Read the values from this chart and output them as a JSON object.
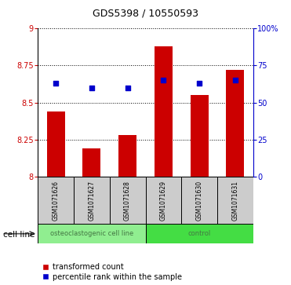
{
  "title": "GDS5398 / 10550593",
  "samples": [
    "GSM1071626",
    "GSM1071627",
    "GSM1071628",
    "GSM1071629",
    "GSM1071630",
    "GSM1071631"
  ],
  "transformed_counts": [
    8.44,
    8.19,
    8.28,
    8.88,
    8.55,
    8.72
  ],
  "percentile_ranks": [
    63,
    60,
    60,
    65,
    63,
    65
  ],
  "ylim_left": [
    8.0,
    9.0
  ],
  "ylim_right": [
    0,
    100
  ],
  "yticks_left": [
    8.0,
    8.25,
    8.5,
    8.75,
    9.0
  ],
  "ytick_labels_left": [
    "8",
    "8.25",
    "8.5",
    "8.75",
    "9"
  ],
  "yticks_right": [
    0,
    25,
    50,
    75,
    100
  ],
  "ytick_labels_right": [
    "0",
    "25",
    "50",
    "75",
    "100%"
  ],
  "bar_color": "#cc0000",
  "dot_color": "#0000cc",
  "bar_bottom": 8.0,
  "groups": [
    {
      "label": "osteoclastogenic cell line",
      "indices": [
        0,
        1,
        2
      ],
      "color": "#90ee90"
    },
    {
      "label": "control",
      "indices": [
        3,
        4,
        5
      ],
      "color": "#44dd44"
    }
  ],
  "cell_line_label": "cell line",
  "legend_bar_label": "transformed count",
  "legend_dot_label": "percentile rank within the sample",
  "grid_color": "#000000",
  "sample_box_color": "#cccccc",
  "osteoclast_text_color": "#447744",
  "bar_width": 0.5
}
